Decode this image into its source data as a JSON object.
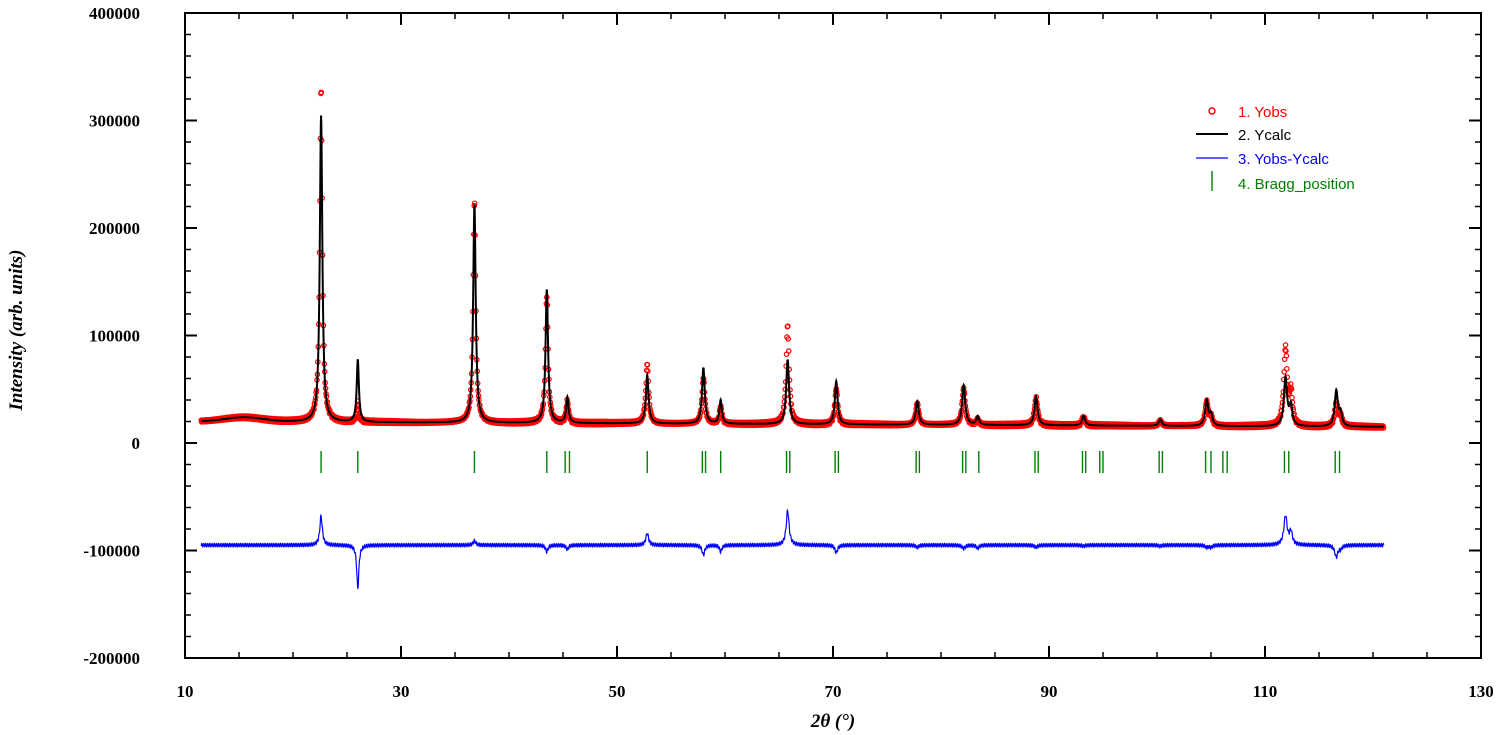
{
  "chart_data": {
    "type": "line",
    "title": "",
    "xlabel": "2θ (°)",
    "ylabel": "Intensity (arb. units)",
    "xlim": [
      10,
      130
    ],
    "ylim": [
      -200000,
      400000
    ],
    "x_ticks": [
      "10",
      "30",
      "50",
      "70",
      "90",
      "110",
      "130"
    ],
    "y_ticks": [
      "400000",
      "300000",
      "200000",
      "100000",
      "0",
      "-100000",
      "-200000"
    ],
    "x_range": [
      11.5,
      121
    ],
    "background": {
      "start": 20000,
      "end": 15000,
      "hump_center": 15.5,
      "hump_height": 4000
    },
    "diff_offset": -95000,
    "legend_position": "top-right",
    "colors": {
      "obs": "#ff0000",
      "calc": "#000000",
      "diff": "#0000ff",
      "bragg": "#008000"
    },
    "series": [
      {
        "name": "1. Yobs",
        "style": "circles"
      },
      {
        "name": "2. Ycalc",
        "style": "line"
      },
      {
        "name": "3. Yobs-Ycalc",
        "style": "line"
      },
      {
        "name": "4. Bragg_position",
        "style": "ticks"
      }
    ],
    "peaks": [
      {
        "pos": 22.6,
        "obs": 312000,
        "calc": 285000,
        "width": 0.14
      },
      {
        "pos": 26.0,
        "obs": 18000,
        "calc": 58000,
        "width": 0.12
      },
      {
        "pos": 36.8,
        "obs": 207000,
        "calc": 203000,
        "width": 0.14
      },
      {
        "pos": 43.5,
        "obs": 118000,
        "calc": 124000,
        "width": 0.14
      },
      {
        "pos": 45.4,
        "obs": 20000,
        "calc": 24000,
        "width": 0.13
      },
      {
        "pos": 52.8,
        "obs": 56000,
        "calc": 45000,
        "width": 0.15
      },
      {
        "pos": 58.0,
        "obs": 43000,
        "calc": 52000,
        "width": 0.15
      },
      {
        "pos": 59.6,
        "obs": 16000,
        "calc": 22000,
        "width": 0.13
      },
      {
        "pos": 65.8,
        "obs": 92000,
        "calc": 60000,
        "width": 0.16
      },
      {
        "pos": 70.3,
        "obs": 33000,
        "calc": 40000,
        "width": 0.15
      },
      {
        "pos": 77.8,
        "obs": 20000,
        "calc": 22000,
        "width": 0.16
      },
      {
        "pos": 82.1,
        "obs": 34000,
        "calc": 37000,
        "width": 0.17
      },
      {
        "pos": 83.4,
        "obs": 5000,
        "calc": 8000,
        "width": 0.14
      },
      {
        "pos": 88.8,
        "obs": 25000,
        "calc": 27000,
        "width": 0.17
      },
      {
        "pos": 93.2,
        "obs": 8000,
        "calc": 9000,
        "width": 0.16
      },
      {
        "pos": 100.3,
        "obs": 5000,
        "calc": 6000,
        "width": 0.16
      },
      {
        "pos": 104.6,
        "obs": 22000,
        "calc": 24000,
        "width": 0.17
      },
      {
        "pos": 105.0,
        "obs": 8000,
        "calc": 10000,
        "width": 0.15
      },
      {
        "pos": 111.9,
        "obs": 72000,
        "calc": 45000,
        "width": 0.18
      },
      {
        "pos": 112.4,
        "obs": 30000,
        "calc": 18000,
        "width": 0.16
      },
      {
        "pos": 116.6,
        "obs": 22000,
        "calc": 33000,
        "width": 0.17
      },
      {
        "pos": 117.0,
        "obs": 9000,
        "calc": 12000,
        "width": 0.15
      }
    ],
    "bragg_positions": [
      22.6,
      26.0,
      36.8,
      43.5,
      45.2,
      45.6,
      52.8,
      57.9,
      58.2,
      59.6,
      65.7,
      66.0,
      70.2,
      70.5,
      77.7,
      78.0,
      82.0,
      82.3,
      83.5,
      88.7,
      89.0,
      93.1,
      93.4,
      94.7,
      95.0,
      100.2,
      100.5,
      104.5,
      105.0,
      106.1,
      106.5,
      111.8,
      112.2,
      116.5,
      116.9
    ]
  }
}
